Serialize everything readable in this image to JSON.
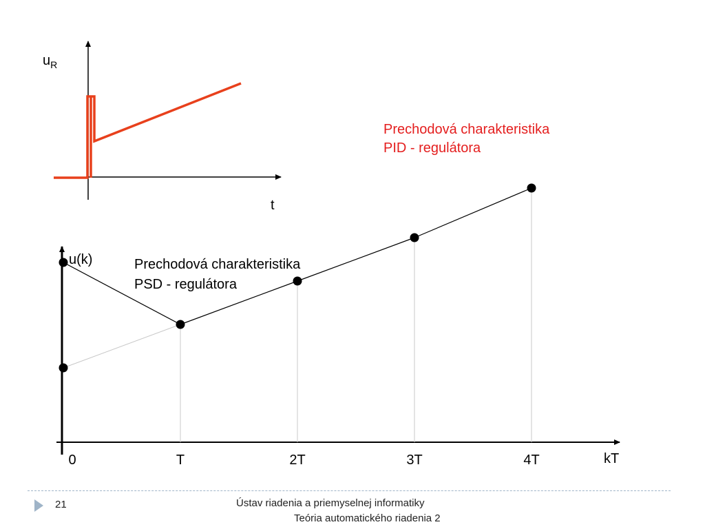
{
  "top_chart": {
    "y_axis_label": "u",
    "y_axis_sub": "R",
    "x_axis_label": "t",
    "line_color": "#e8401c",
    "caption_line1": "Prechodová charakteristika",
    "caption_line2": "PID - regulátora",
    "caption_color": "#e41e1e"
  },
  "bottom_chart": {
    "y_axis_label": "u(k)",
    "x_axis_label": "kT",
    "ticks": [
      "0",
      "T",
      "2T",
      "3T",
      "4T"
    ],
    "caption_line1": "Prechodová charakteristika",
    "caption_line2": "PSD - regulátora",
    "points": [
      {
        "k": 0,
        "u": 0.58
      },
      {
        "k": 0,
        "u": 0.24
      },
      {
        "k": 1,
        "u": 0.38
      },
      {
        "k": 2,
        "u": 0.52
      },
      {
        "k": 3,
        "u": 0.66
      },
      {
        "k": 4,
        "u": 0.82
      }
    ]
  },
  "footer": {
    "page_number": "21",
    "line1": "Ústav riadenia a priemyselnej informatiky",
    "line2": "Teória automatického riadenia 2"
  }
}
